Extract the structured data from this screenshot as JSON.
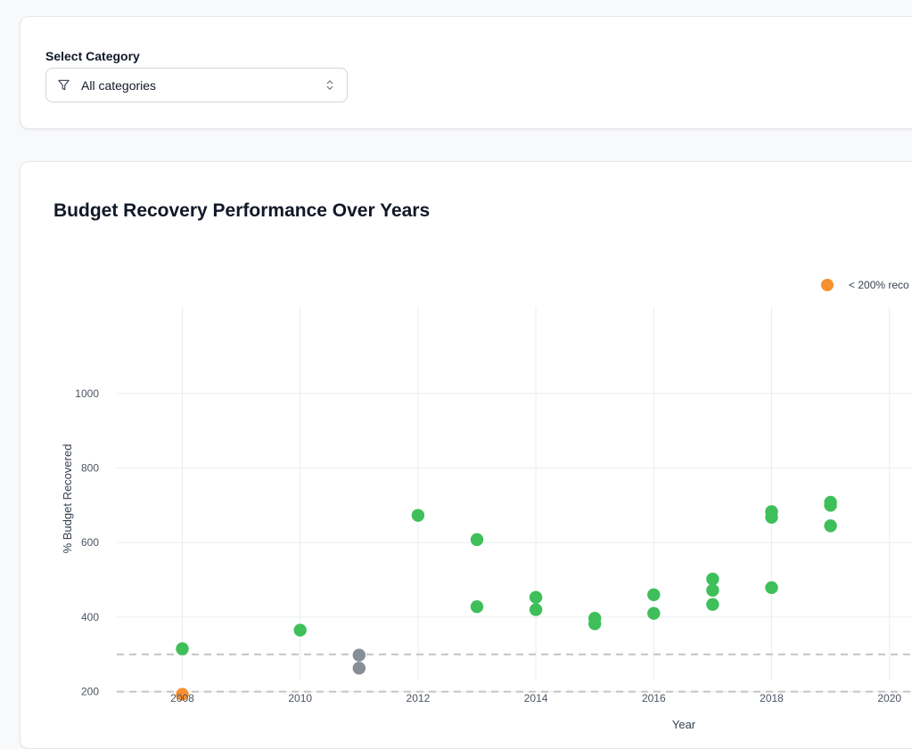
{
  "filter": {
    "label": "Select Category",
    "selected": "All categories"
  },
  "colors": {
    "green": "#3fbf5a",
    "orange": "#f7902f",
    "gray": "#868e96",
    "threshold_line": "#c4c4c4",
    "grid": "#e9ecef"
  },
  "chart_data": {
    "type": "scatter",
    "title": "Budget Recovery Performance Over Years",
    "xlabel": "Year",
    "ylabel": "% Budget Recovered",
    "xlim": [
      2007,
      2021
    ],
    "ylim": [
      0,
      1000
    ],
    "xticks": [
      2008,
      2010,
      2012,
      2014,
      2016,
      2018,
      2020
    ],
    "yticks": [
      200,
      400,
      600,
      800,
      1000
    ],
    "grid": true,
    "reference_lines": [
      200,
      300
    ],
    "legend": [
      {
        "label": "< 200% reco",
        "color": "#f7902f"
      }
    ],
    "points": [
      {
        "x": 2008,
        "y": 315,
        "color": "#3fbf5a"
      },
      {
        "x": 2008,
        "y": 193,
        "color": "#f7902f"
      },
      {
        "x": 2010,
        "y": 365,
        "color": "#3fbf5a"
      },
      {
        "x": 2011,
        "y": 298,
        "color": "#868e96"
      },
      {
        "x": 2011,
        "y": 263,
        "color": "#868e96"
      },
      {
        "x": 2012,
        "y": 673,
        "color": "#3fbf5a"
      },
      {
        "x": 2013,
        "y": 608,
        "color": "#3fbf5a"
      },
      {
        "x": 2013,
        "y": 428,
        "color": "#3fbf5a"
      },
      {
        "x": 2014,
        "y": 453,
        "color": "#3fbf5a"
      },
      {
        "x": 2014,
        "y": 420,
        "color": "#3fbf5a"
      },
      {
        "x": 2015,
        "y": 397,
        "color": "#3fbf5a"
      },
      {
        "x": 2015,
        "y": 382,
        "color": "#3fbf5a"
      },
      {
        "x": 2016,
        "y": 460,
        "color": "#3fbf5a"
      },
      {
        "x": 2016,
        "y": 410,
        "color": "#3fbf5a"
      },
      {
        "x": 2017,
        "y": 502,
        "color": "#3fbf5a"
      },
      {
        "x": 2017,
        "y": 472,
        "color": "#3fbf5a"
      },
      {
        "x": 2017,
        "y": 434,
        "color": "#3fbf5a"
      },
      {
        "x": 2018,
        "y": 683,
        "color": "#3fbf5a"
      },
      {
        "x": 2018,
        "y": 668,
        "color": "#3fbf5a"
      },
      {
        "x": 2018,
        "y": 479,
        "color": "#3fbf5a"
      },
      {
        "x": 2019,
        "y": 708,
        "color": "#3fbf5a"
      },
      {
        "x": 2019,
        "y": 700,
        "color": "#3fbf5a"
      },
      {
        "x": 2019,
        "y": 645,
        "color": "#3fbf5a"
      }
    ]
  }
}
